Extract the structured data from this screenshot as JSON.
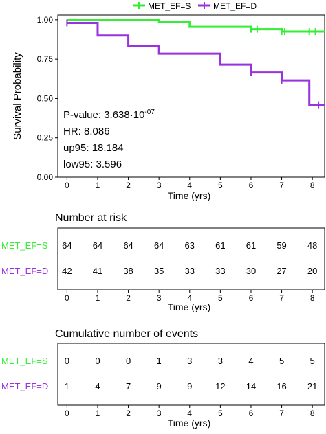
{
  "legend": {
    "items": [
      {
        "label": "MET_EF=S",
        "color": "#33ee33"
      },
      {
        "label": "MET_EF=D",
        "color": "#9933dd"
      }
    ]
  },
  "colors": {
    "S": "#33ee33",
    "D": "#9933dd",
    "stats_box": "#ffffff"
  },
  "chart_data": [
    {
      "type": "line",
      "step": true,
      "ylabel": "Survival Probability",
      "xlabel": "Time (yrs)",
      "xlim": [
        -0.3,
        8.4
      ],
      "ylim": [
        0,
        1.03
      ],
      "x_ticks": [
        0,
        1,
        2,
        3,
        4,
        5,
        6,
        7,
        8
      ],
      "y_ticks": [
        0.0,
        0.25,
        0.5,
        0.75,
        1.0
      ],
      "y_tick_labels": [
        "0.00",
        "0.25",
        "0.50",
        "0.75",
        "1.00"
      ],
      "grid": false,
      "legend_position": "top",
      "series": [
        {
          "name": "MET_EF=S",
          "color": "#33ee33",
          "steps": [
            [
              0,
              1.0
            ],
            [
              3.0,
              0.985
            ],
            [
              4.0,
              0.955
            ],
            [
              6.0,
              0.94
            ],
            [
              7.0,
              0.925
            ],
            [
              8.4,
              0.925
            ]
          ],
          "censor": [
            6,
            6.2,
            7,
            7.1,
            7.9,
            8.1
          ]
        },
        {
          "name": "MET_EF=D",
          "color": "#9933dd",
          "steps": [
            [
              0,
              0.98
            ],
            [
              1.0,
              0.9
            ],
            [
              2.0,
              0.835
            ],
            [
              3.0,
              0.785
            ],
            [
              5.0,
              0.715
            ],
            [
              6.0,
              0.665
            ],
            [
              7.0,
              0.615
            ],
            [
              7.9,
              0.46
            ],
            [
              8.4,
              0.46
            ]
          ],
          "censor": [
            0,
            6,
            7,
            8.2
          ]
        }
      ],
      "annotations": [
        "P-value: 3.638·10",
        "-07",
        "HR: 8.086",
        "up95: 18.184",
        "low95: 3.596"
      ]
    },
    {
      "type": "table",
      "title": "Number at risk",
      "xlabel": "Time (yrs)",
      "x_ticks": [
        0,
        1,
        2,
        3,
        4,
        5,
        6,
        7,
        8
      ],
      "rows": [
        {
          "name": "MET_EF=S",
          "color": "#33ee33",
          "values": [
            64,
            64,
            64,
            64,
            63,
            61,
            61,
            59,
            48
          ]
        },
        {
          "name": "MET_EF=D",
          "color": "#9933dd",
          "values": [
            42,
            41,
            38,
            35,
            33,
            33,
            30,
            27,
            20
          ]
        }
      ]
    },
    {
      "type": "table",
      "title": "Cumulative number of events",
      "xlabel": "Time (yrs)",
      "x_ticks": [
        0,
        1,
        2,
        3,
        4,
        5,
        6,
        7,
        8
      ],
      "rows": [
        {
          "name": "MET_EF=S",
          "color": "#33ee33",
          "values": [
            0,
            0,
            0,
            1,
            3,
            3,
            4,
            5,
            5
          ]
        },
        {
          "name": "MET_EF=D",
          "color": "#9933dd",
          "values": [
            1,
            4,
            7,
            9,
            9,
            12,
            14,
            16,
            21
          ]
        }
      ]
    }
  ]
}
